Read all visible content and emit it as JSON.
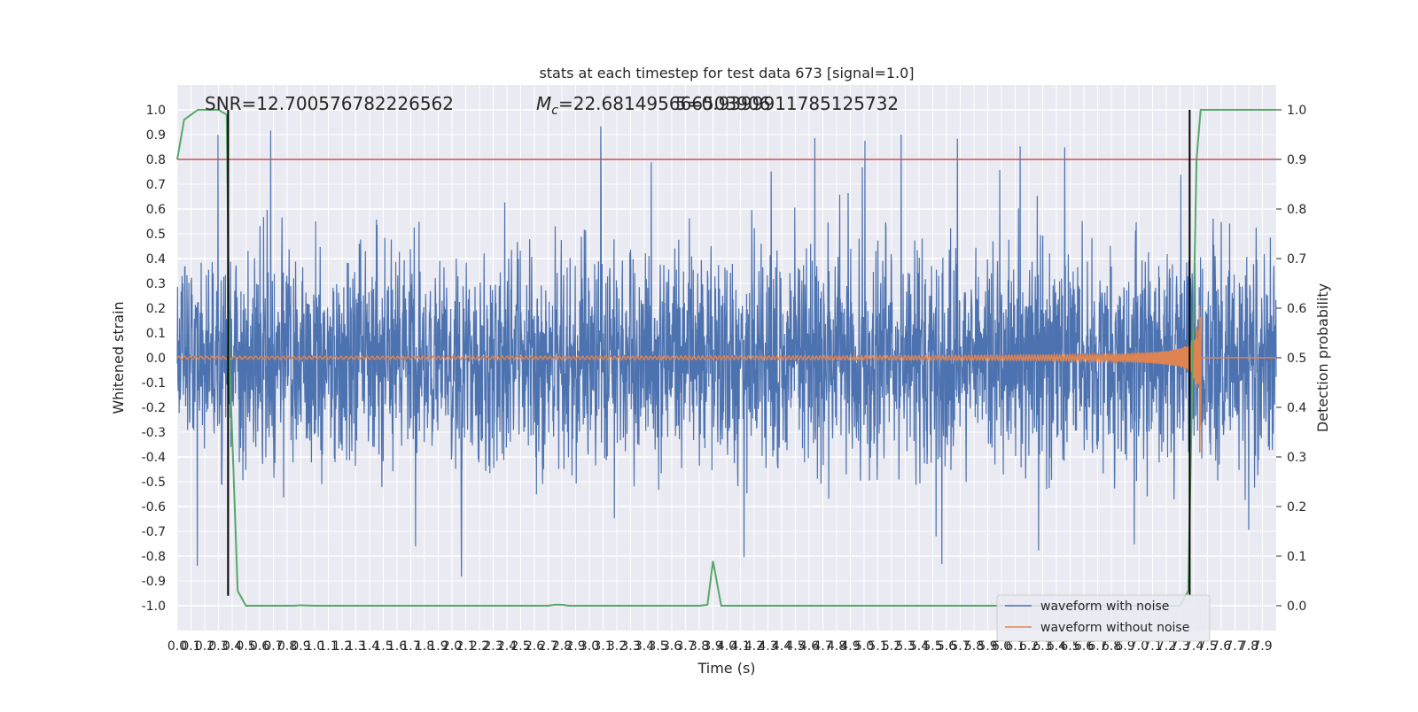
{
  "chart_data": {
    "type": "line",
    "title": "stats at each timestep for test data 673 [signal=1.0]",
    "xlabel": "Time (s)",
    "ylabel": "Whitened strain",
    "y2label": "Detection probability",
    "xlim": [
      0.0,
      8.0
    ],
    "ylim": [
      -1.1,
      1.1
    ],
    "y2lim": [
      -0.05,
      1.05
    ],
    "x_ticks": [
      "0.0",
      "0.1",
      "0.2",
      "0.3",
      "0.4",
      "0.5",
      "0.6",
      "0.7",
      "0.8",
      "0.9",
      "1.0",
      "1.1",
      "1.2",
      "1.3",
      "1.4",
      "1.5",
      "1.6",
      "1.7",
      "1.8",
      "1.9",
      "2.0",
      "2.1",
      "2.2",
      "2.3",
      "2.4",
      "2.5",
      "2.6",
      "2.7",
      "2.8",
      "2.9",
      "3.0",
      "3.1",
      "3.2",
      "3.3",
      "3.4",
      "3.5",
      "3.6",
      "3.7",
      "3.8",
      "3.9",
      "4.0",
      "4.1",
      "4.2",
      "4.3",
      "4.4",
      "4.5",
      "4.6",
      "4.7",
      "4.8",
      "4.9",
      "5.0",
      "5.1",
      "5.2",
      "5.3",
      "5.4",
      "5.5",
      "5.6",
      "5.7",
      "5.8",
      "5.9",
      "6.0",
      "6.1",
      "6.2",
      "6.3",
      "6.4",
      "6.5",
      "6.6",
      "6.7",
      "6.8",
      "6.9",
      "7.0",
      "7.1",
      "7.2",
      "7.3",
      "7.4",
      "7.5",
      "7.6",
      "7.7",
      "7.8",
      "7.9"
    ],
    "y_ticks": [
      "1.0",
      "0.9",
      "0.8",
      "0.7",
      "0.6",
      "0.5",
      "0.4",
      "0.3",
      "0.2",
      "0.1",
      "0.0",
      "-0.1",
      "-0.2",
      "-0.3",
      "-0.4",
      "-0.5",
      "-0.6",
      "-0.7",
      "-0.8",
      "-0.9",
      "-1.0"
    ],
    "y2_ticks": [
      "1.0",
      "0.9",
      "0.8",
      "0.7",
      "0.6",
      "0.5",
      "0.4",
      "0.3",
      "0.2",
      "0.1",
      "0.0"
    ],
    "annotations": {
      "snr": "SNR=12.700576782226562",
      "mc_prefix": "M",
      "mc_sub": "c",
      "mc_value": "=22.681495666503906",
      "overlap_text": "5=0.9399911785125732"
    },
    "threshold": 0.9,
    "vlines": [
      0.37,
      7.37
    ],
    "colors": {
      "noise": "#4c72b0",
      "clean": "#dd8452",
      "prob": "#55a868",
      "threshold": "#c44e52",
      "vline": "#000000",
      "plot_bg": "#eaeaf2",
      "grid": "#ffffff"
    },
    "series": [
      {
        "name": "waveform with noise",
        "description": "whitened strain with noise, amplitude approx ±0.3 with spikes reaching ±1.0"
      },
      {
        "name": "waveform without noise",
        "description": "chirp waveform, amplitude growing from 0.01 to about 0.6 and frequency increasing until merger near t=7.45 s"
      },
      {
        "name": "detection probability",
        "axis": "right",
        "x": [
          0.0,
          0.05,
          0.1,
          0.15,
          0.2,
          0.25,
          0.3,
          0.36,
          0.38,
          0.44,
          0.5,
          0.7,
          0.85,
          0.9,
          1.0,
          2.0,
          2.5,
          2.7,
          2.75,
          2.8,
          2.85,
          3.0,
          3.5,
          3.8,
          3.86,
          3.9,
          3.96,
          4.0,
          4.5,
          5.0,
          6.0,
          7.0,
          7.3,
          7.36,
          7.42,
          7.45,
          7.5,
          8.0
        ],
        "y": [
          0.9,
          0.98,
          0.99,
          1.0,
          1.0,
          1.0,
          1.0,
          0.99,
          0.5,
          0.03,
          0.0,
          0.0,
          0.0,
          0.001,
          0.0,
          0.0,
          0.0,
          0.0,
          0.002,
          0.002,
          0.0,
          0.0,
          0.0,
          0.0,
          0.002,
          0.09,
          0.0,
          0.0,
          0.0,
          0.0,
          0.0,
          0.0,
          0.0,
          0.03,
          0.9,
          1.0,
          1.0,
          1.0
        ]
      }
    ],
    "legend": {
      "placement": "lower-right",
      "entries": [
        "waveform with noise",
        "waveform without noise"
      ]
    },
    "grid": true
  }
}
